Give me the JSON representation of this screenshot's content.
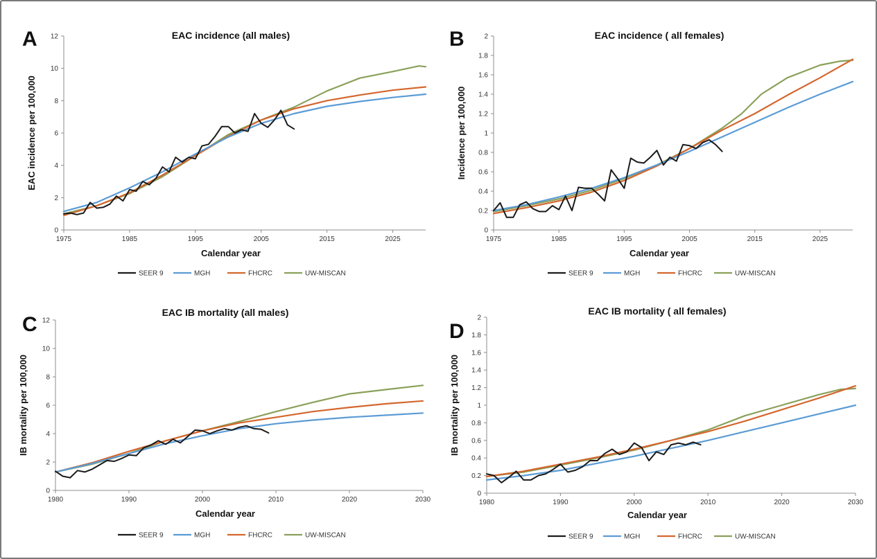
{
  "chart_data": [
    {
      "type": "line",
      "panel_label": "A",
      "title": "EAC incidence (all males)",
      "xlabel": "Calendar year",
      "ylabel": "EAC incidence per 100,000",
      "xlim": [
        1975,
        2030
      ],
      "ylim": [
        0,
        12
      ],
      "xticks": [
        1975,
        1985,
        1995,
        2005,
        2015,
        2025
      ],
      "yticks": [
        0,
        2,
        4,
        6,
        8,
        10,
        12
      ],
      "legend": "bottom",
      "grid": false,
      "series": [
        {
          "name": "SEER 9",
          "color": "#1a1a1a",
          "x": [
            1975,
            1976,
            1977,
            1978,
            1979,
            1980,
            1981,
            1982,
            1983,
            1984,
            1985,
            1986,
            1987,
            1988,
            1989,
            1990,
            1991,
            1992,
            1993,
            1994,
            1995,
            1996,
            1997,
            1998,
            1999,
            2000,
            2001,
            2002,
            2003,
            2004,
            2005,
            2006,
            2007,
            2008,
            2009,
            2010
          ],
          "y": [
            1.0,
            1.05,
            0.95,
            1.05,
            1.7,
            1.35,
            1.4,
            1.6,
            2.1,
            1.8,
            2.5,
            2.4,
            3.0,
            2.8,
            3.2,
            3.9,
            3.6,
            4.5,
            4.2,
            4.5,
            4.4,
            5.2,
            5.3,
            5.8,
            6.4,
            6.4,
            6.0,
            6.2,
            6.1,
            7.2,
            6.6,
            6.35,
            6.8,
            7.4,
            6.5,
            6.25
          ]
        },
        {
          "name": "MGH",
          "color": "#5b9bd5",
          "x": [
            1975,
            1980,
            1985,
            1990,
            1995,
            2000,
            2005,
            2010,
            2015,
            2020,
            2025,
            2030
          ],
          "y": [
            1.15,
            1.7,
            2.6,
            3.6,
            4.7,
            5.75,
            6.6,
            7.2,
            7.65,
            7.95,
            8.2,
            8.4
          ]
        },
        {
          "name": "FHCRC",
          "color": "#d4662d",
          "x": [
            1975,
            1980,
            1985,
            1990,
            1995,
            2000,
            2005,
            2010,
            2015,
            2020,
            2025,
            2030
          ],
          "y": [
            0.9,
            1.5,
            2.3,
            3.4,
            4.6,
            5.8,
            6.8,
            7.5,
            8.0,
            8.35,
            8.65,
            8.85
          ]
        },
        {
          "name": "UW-MISCAN",
          "color": "#8aa05a",
          "x": [
            1975,
            1980,
            1985,
            1990,
            1995,
            2000,
            2005,
            2010,
            2015,
            2020,
            2025,
            2029,
            2030
          ],
          "y": [
            1.0,
            1.5,
            2.25,
            3.3,
            4.6,
            5.9,
            6.8,
            7.6,
            8.6,
            9.4,
            9.8,
            10.15,
            10.1
          ]
        }
      ]
    },
    {
      "type": "line",
      "panel_label": "B",
      "title": "EAC incidence ( all  females)",
      "xlabel": "Calendar year",
      "ylabel": "Incidence per 100,000",
      "xlim": [
        1975,
        2030
      ],
      "ylim": [
        0,
        2
      ],
      "xticks": [
        1975,
        1985,
        1995,
        2005,
        2015,
        2025
      ],
      "yticks": [
        0,
        0.2,
        0.4,
        0.6,
        0.8,
        1,
        1.2,
        1.4,
        1.6,
        1.8,
        2
      ],
      "legend": "bottom",
      "grid": false,
      "series": [
        {
          "name": "SEER 9",
          "color": "#1a1a1a",
          "x": [
            1975,
            1976,
            1977,
            1978,
            1979,
            1980,
            1981,
            1982,
            1983,
            1984,
            1985,
            1986,
            1987,
            1988,
            1989,
            1990,
            1991,
            1992,
            1993,
            1994,
            1995,
            1996,
            1997,
            1998,
            1999,
            2000,
            2001,
            2002,
            2003,
            2004,
            2005,
            2006,
            2007,
            2008,
            2009,
            2010
          ],
          "y": [
            0.2,
            0.28,
            0.13,
            0.13,
            0.26,
            0.29,
            0.22,
            0.19,
            0.19,
            0.25,
            0.21,
            0.35,
            0.2,
            0.44,
            0.43,
            0.43,
            0.37,
            0.3,
            0.62,
            0.53,
            0.43,
            0.74,
            0.7,
            0.69,
            0.75,
            0.82,
            0.67,
            0.75,
            0.71,
            0.88,
            0.87,
            0.84,
            0.9,
            0.93,
            0.88,
            0.81
          ]
        },
        {
          "name": "MGH",
          "color": "#5b9bd5",
          "x": [
            1975,
            1980,
            1985,
            1990,
            1995,
            2000,
            2005,
            2010,
            2015,
            2020,
            2025,
            2030
          ],
          "y": [
            0.2,
            0.26,
            0.34,
            0.43,
            0.54,
            0.67,
            0.81,
            0.96,
            1.11,
            1.26,
            1.4,
            1.53
          ]
        },
        {
          "name": "FHCRC",
          "color": "#d4662d",
          "x": [
            1975,
            1980,
            1985,
            1990,
            1995,
            2000,
            2005,
            2010,
            2015,
            2020,
            2025,
            2030
          ],
          "y": [
            0.17,
            0.23,
            0.3,
            0.39,
            0.51,
            0.66,
            0.84,
            1.03,
            1.2,
            1.39,
            1.57,
            1.76
          ]
        },
        {
          "name": "UW-MISCAN",
          "color": "#8aa05a",
          "x": [
            1975,
            1980,
            1985,
            1990,
            1995,
            2000,
            2005,
            2010,
            2013,
            2016,
            2020,
            2025,
            2028,
            2030
          ],
          "y": [
            0.19,
            0.25,
            0.32,
            0.41,
            0.53,
            0.67,
            0.84,
            1.05,
            1.2,
            1.4,
            1.57,
            1.7,
            1.74,
            1.75
          ]
        }
      ]
    },
    {
      "type": "line",
      "panel_label": "C",
      "title": "EAC IB mortality (all males)",
      "xlabel": "Calendar year",
      "ylabel": "IB mortality per 100,000",
      "xlim": [
        1980,
        2030
      ],
      "ylim": [
        0,
        12
      ],
      "xticks": [
        1980,
        1990,
        2000,
        2010,
        2020,
        2030
      ],
      "yticks": [
        0,
        2,
        4,
        6,
        8,
        10,
        12
      ],
      "legend": "bottom",
      "grid": false,
      "series": [
        {
          "name": "SEER 9",
          "color": "#1a1a1a",
          "x": [
            1980,
            1981,
            1982,
            1983,
            1984,
            1985,
            1986,
            1987,
            1988,
            1989,
            1990,
            1991,
            1992,
            1993,
            1994,
            1995,
            1996,
            1997,
            1998,
            1999,
            2000,
            2001,
            2002,
            2003,
            2004,
            2005,
            2006,
            2007,
            2008,
            2009
          ],
          "y": [
            1.35,
            1.0,
            0.9,
            1.4,
            1.3,
            1.5,
            1.8,
            2.1,
            2.05,
            2.25,
            2.5,
            2.45,
            3.0,
            3.2,
            3.5,
            3.25,
            3.6,
            3.35,
            3.8,
            4.25,
            4.2,
            4.0,
            4.2,
            4.35,
            4.25,
            4.45,
            4.55,
            4.35,
            4.3,
            4.05
          ]
        },
        {
          "name": "MGH",
          "color": "#5b9bd5",
          "x": [
            1980,
            1985,
            1990,
            1995,
            2000,
            2005,
            2010,
            2015,
            2020,
            2025,
            2030
          ],
          "y": [
            1.3,
            1.9,
            2.6,
            3.3,
            3.85,
            4.35,
            4.7,
            4.95,
            5.15,
            5.3,
            5.45
          ]
        },
        {
          "name": "FHCRC",
          "color": "#d4662d",
          "x": [
            1980,
            1985,
            1990,
            1995,
            2000,
            2005,
            2010,
            2015,
            2020,
            2025,
            2030
          ],
          "y": [
            1.3,
            1.95,
            2.75,
            3.5,
            4.2,
            4.75,
            5.15,
            5.55,
            5.85,
            6.1,
            6.3
          ]
        },
        {
          "name": "UW-MISCAN",
          "color": "#8aa05a",
          "x": [
            1980,
            1985,
            1990,
            1995,
            2000,
            2005,
            2010,
            2015,
            2020,
            2025,
            2030
          ],
          "y": [
            1.3,
            1.85,
            2.6,
            3.5,
            4.2,
            4.85,
            5.55,
            6.2,
            6.8,
            7.1,
            7.4
          ]
        }
      ]
    },
    {
      "type": "line",
      "panel_label": "D",
      "title": "EAC IB mortality ( all females)",
      "xlabel": "Calendar year",
      "ylabel": "IB mortality per 100,000",
      "xlim": [
        1980,
        2030
      ],
      "ylim": [
        0,
        2
      ],
      "xticks": [
        1980,
        1990,
        2000,
        2010,
        2020,
        2030
      ],
      "yticks": [
        0,
        0.2,
        0.4,
        0.6,
        0.8,
        1,
        1.2,
        1.4,
        1.6,
        1.8,
        2
      ],
      "legend": "bottom",
      "grid": false,
      "series": [
        {
          "name": "SEER 9",
          "color": "#1a1a1a",
          "x": [
            1980,
            1981,
            1982,
            1983,
            1984,
            1985,
            1986,
            1987,
            1988,
            1989,
            1990,
            1991,
            1992,
            1993,
            1994,
            1995,
            1996,
            1997,
            1998,
            1999,
            2000,
            2001,
            2002,
            2003,
            2004,
            2005,
            2006,
            2007,
            2008,
            2009
          ],
          "y": [
            0.22,
            0.2,
            0.12,
            0.18,
            0.25,
            0.15,
            0.15,
            0.2,
            0.22,
            0.27,
            0.33,
            0.24,
            0.26,
            0.3,
            0.37,
            0.37,
            0.45,
            0.5,
            0.44,
            0.47,
            0.57,
            0.52,
            0.37,
            0.47,
            0.44,
            0.55,
            0.57,
            0.55,
            0.58,
            0.55
          ]
        },
        {
          "name": "MGH",
          "color": "#5b9bd5",
          "x": [
            1980,
            1985,
            1990,
            1995,
            2000,
            2005,
            2010,
            2015,
            2020,
            2025,
            2030
          ],
          "y": [
            0.15,
            0.2,
            0.26,
            0.34,
            0.42,
            0.51,
            0.6,
            0.7,
            0.8,
            0.9,
            1.0
          ]
        },
        {
          "name": "FHCRC",
          "color": "#d4662d",
          "x": [
            1980,
            1985,
            1990,
            1995,
            2000,
            2005,
            2010,
            2015,
            2020,
            2025,
            2030
          ],
          "y": [
            0.19,
            0.25,
            0.33,
            0.41,
            0.5,
            0.6,
            0.7,
            0.82,
            0.95,
            1.08,
            1.22
          ]
        },
        {
          "name": "UW-MISCAN",
          "color": "#8aa05a",
          "x": [
            1980,
            1985,
            1990,
            1995,
            2000,
            2005,
            2010,
            2015,
            2020,
            2025,
            2028,
            2030
          ],
          "y": [
            0.19,
            0.24,
            0.32,
            0.4,
            0.49,
            0.6,
            0.72,
            0.88,
            1.0,
            1.12,
            1.18,
            1.19
          ]
        }
      ]
    }
  ]
}
